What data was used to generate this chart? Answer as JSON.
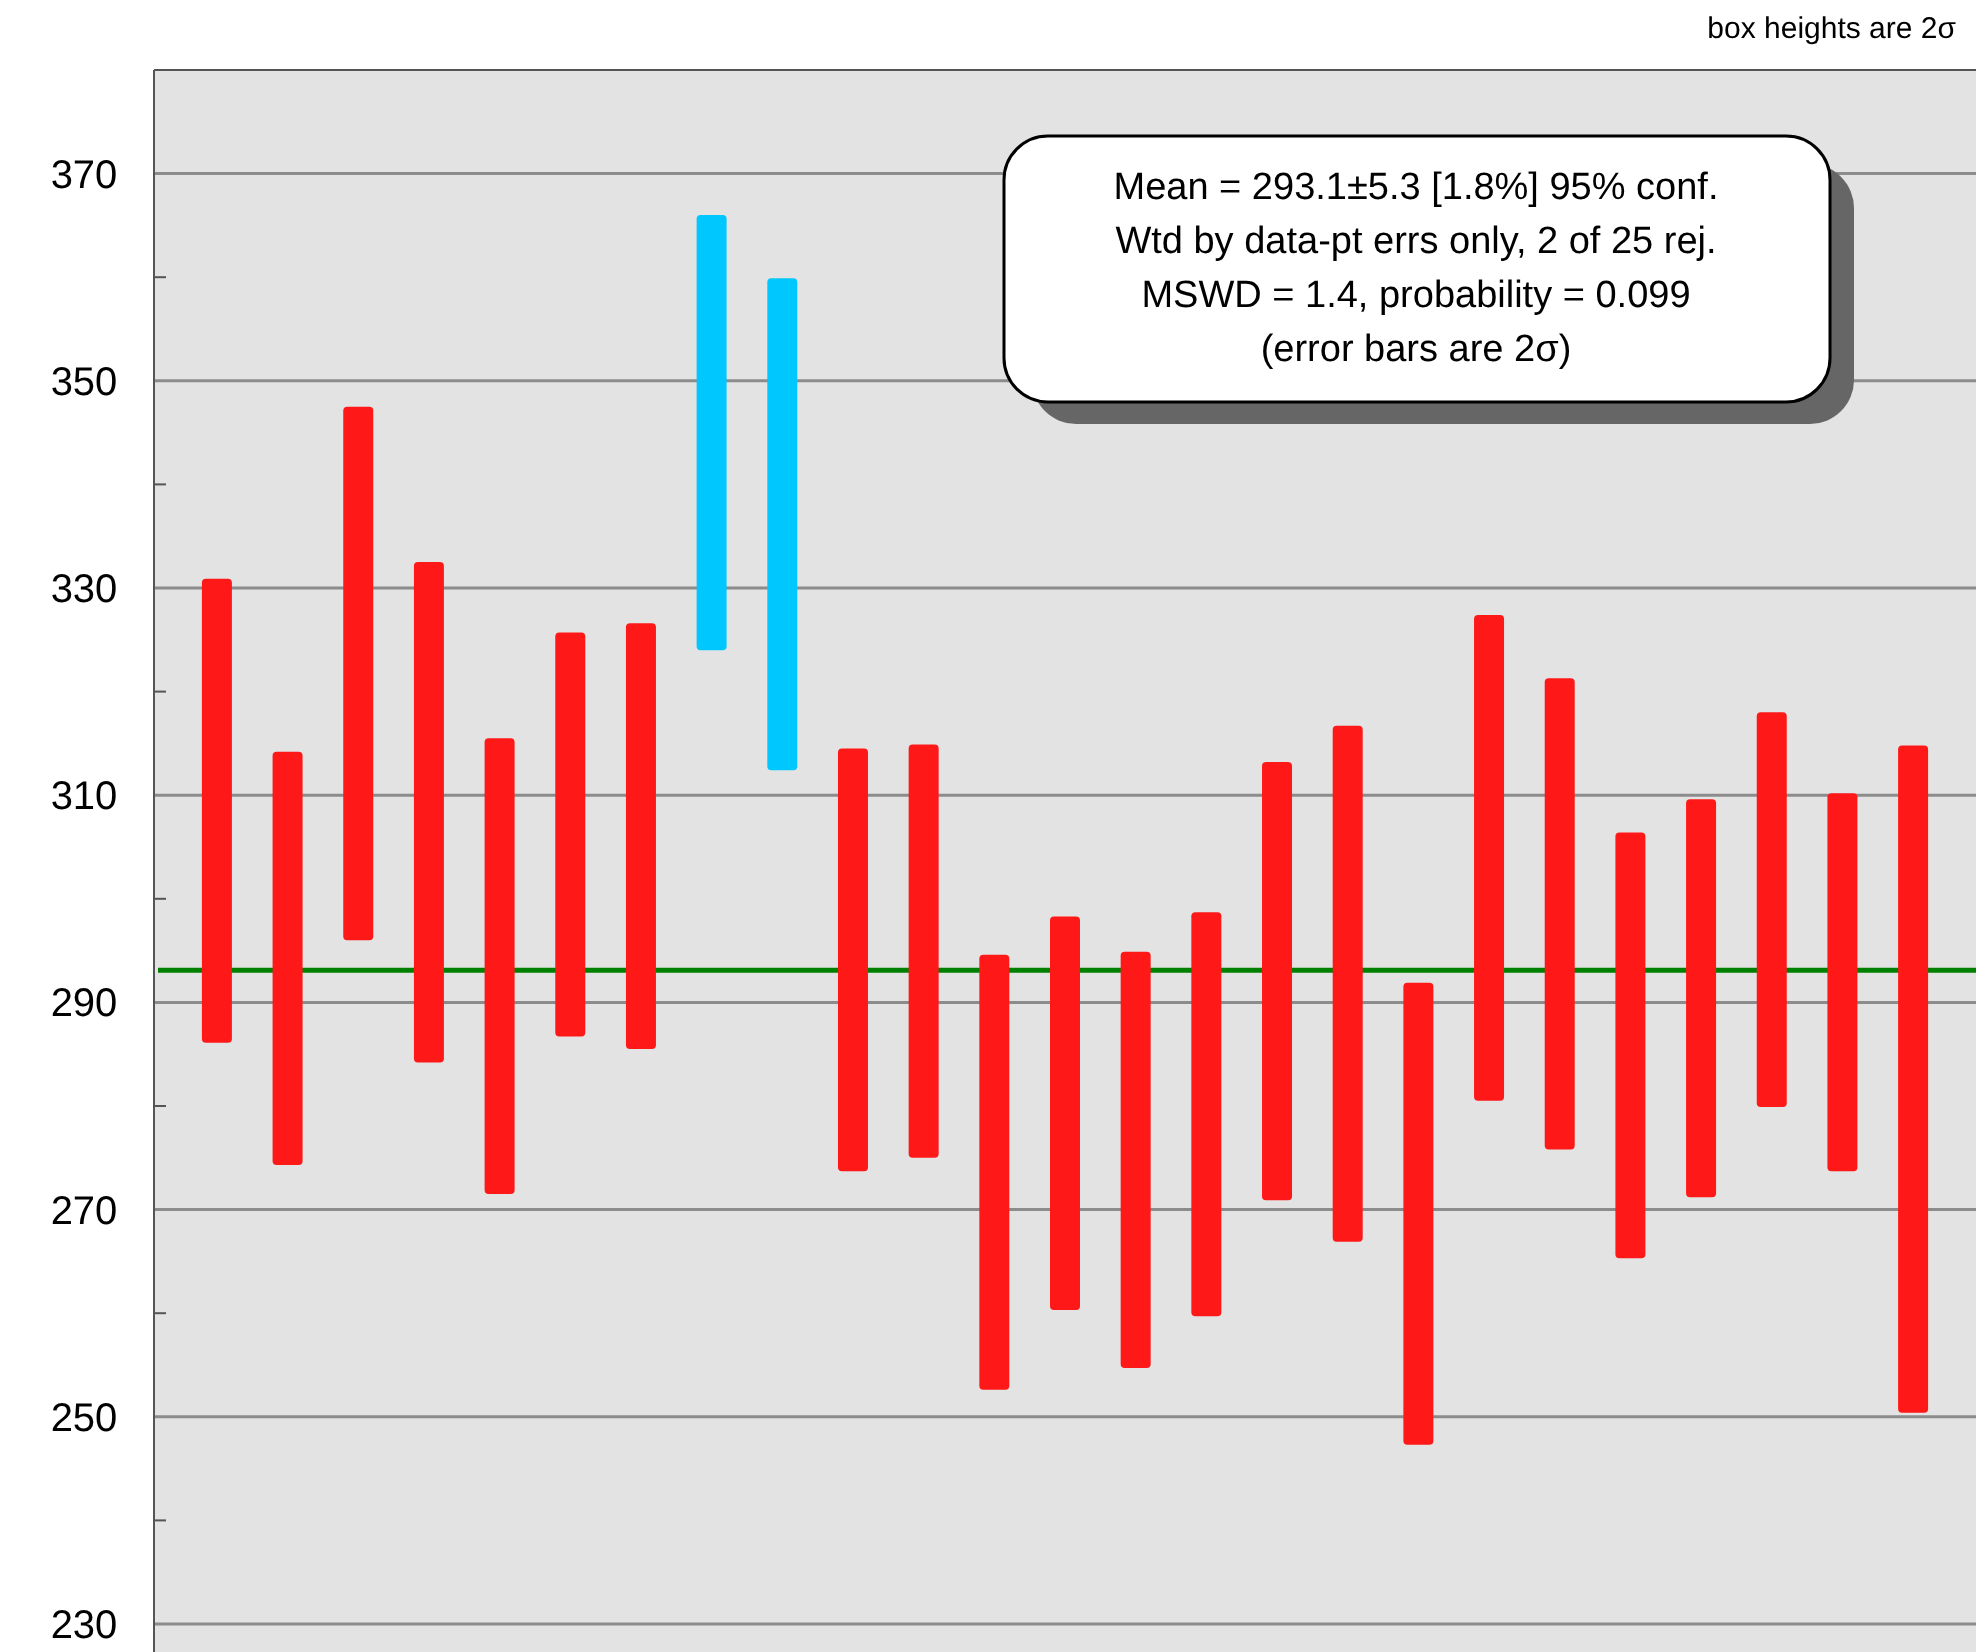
{
  "chart_data": {
    "type": "bar",
    "categories": [
      null,
      null,
      null,
      null,
      null,
      null,
      null,
      null,
      null,
      null,
      null,
      null,
      null,
      null,
      null,
      null,
      null,
      null,
      null,
      null,
      null,
      null,
      null,
      null,
      null
    ],
    "base": [
      286.1,
      274.3,
      296.0,
      284.2,
      271.5,
      286.7,
      285.5,
      324.0,
      312.4,
      273.7,
      275.0,
      252.6,
      260.3,
      254.7,
      259.7,
      270.9,
      266.9,
      247.3,
      280.5,
      275.8,
      265.3,
      271.2,
      279.9,
      273.7,
      250.4
    ],
    "values": [
      44.8,
      39.9,
      51.5,
      48.3,
      44.0,
      39.0,
      41.1,
      42.0,
      47.5,
      40.8,
      39.9,
      42.0,
      38.0,
      40.2,
      39.0,
      42.3,
      49.8,
      44.6,
      46.9,
      45.5,
      41.1,
      38.4,
      38.1,
      36.5,
      64.4
    ],
    "colors": [
      "#ff1818",
      "#ff1818",
      "#ff1818",
      "#ff1818",
      "#ff1818",
      "#ff1818",
      "#ff1818",
      "#00c8ff",
      "#00c8ff",
      "#ff1818",
      "#ff1818",
      "#ff1818",
      "#ff1818",
      "#ff1818",
      "#ff1818",
      "#ff1818",
      "#ff1818",
      "#ff1818",
      "#ff1818",
      "#ff1818",
      "#ff1818",
      "#ff1818",
      "#ff1818",
      "#ff1818",
      "#ff1818"
    ],
    "ylim": [
      230,
      380
    ],
    "yticks": [
      230,
      {
        "value": 240,
        "label": null
      },
      250,
      {
        "value": 260,
        "label": null
      },
      270,
      {
        "value": 280,
        "label": null
      },
      290,
      {
        "value": 300,
        "label": null
      },
      310,
      {
        "value": 320,
        "label": null
      },
      330,
      {
        "value": 340,
        "label": null
      },
      350,
      {
        "value": 360,
        "label": null
      },
      370
    ],
    "grid": "y",
    "ref_lines": [
      {
        "axis": "y",
        "value": 293.1,
        "color": "#008000"
      }
    ],
    "annotations": [
      "Mean = 293.1±5.3  [1.8%]  95% conf.\nWtd by data-pt errs only, 2 of 25 rej.\nMSWD = 1.4, probability = 0.099\n(error bars are 2σ)",
      "box heights are 2σ"
    ]
  }
}
